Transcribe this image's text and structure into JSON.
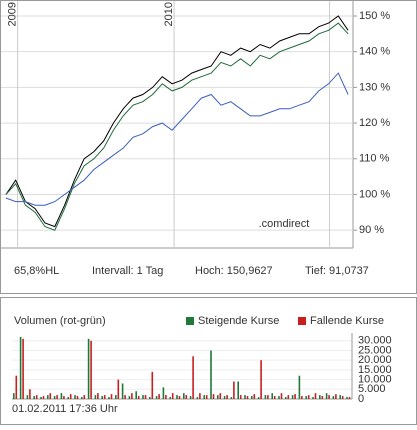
{
  "chart_data": [
    {
      "type": "line",
      "xlim": [
        0,
        36
      ],
      "xticks": [
        {
          "value": 1.7,
          "label": "2009"
        },
        {
          "value": 17.7,
          "label": "2010"
        },
        {
          "value": 33.6,
          "label": ""
        }
      ],
      "ylim": [
        85,
        154.2
      ],
      "yticks": [
        {
          "value": 90,
          "label": "90 %"
        },
        {
          "value": 100,
          "label": "100 %"
        },
        {
          "value": 110,
          "label": "110 %"
        },
        {
          "value": 120,
          "label": "120 %"
        },
        {
          "value": 130,
          "label": "130 %"
        },
        {
          "value": 140,
          "label": "140 %"
        },
        {
          "value": 150,
          "label": "150 %"
        }
      ],
      "grid": true,
      "watermark": ".comdirect",
      "info": [
        "65,8%HL",
        "Intervall: 1 Tag",
        "Hoch: 150,9627",
        "Tief: 91,0737"
      ],
      "series": [
        {
          "color": "#000000",
          "values": [
            100,
            104,
            98,
            96,
            92,
            91,
            97,
            104,
            110,
            112,
            115,
            120,
            124,
            127,
            128,
            130,
            133,
            131,
            132,
            134,
            135,
            136,
            140,
            139,
            141,
            140,
            142,
            141,
            143,
            144,
            145,
            145,
            147,
            148,
            150,
            146
          ]
        },
        {
          "color": "#1f6b3a",
          "values": [
            100,
            103,
            97,
            95,
            91,
            90,
            96,
            103,
            108,
            110,
            113,
            118,
            122,
            125,
            126,
            128,
            131,
            129,
            130,
            132,
            133,
            134,
            137,
            136,
            138,
            136,
            139,
            138,
            140,
            141,
            142,
            143,
            145,
            146,
            148,
            145
          ]
        },
        {
          "color": "#3a5fbf",
          "values": [
            99,
            98,
            98,
            97,
            97,
            98,
            100,
            102,
            104,
            107,
            109,
            111,
            113,
            116,
            117,
            119,
            120,
            118,
            121,
            124,
            127,
            128,
            125,
            126,
            124,
            122,
            122,
            123,
            124,
            124,
            125,
            126,
            129,
            131,
            134,
            128
          ]
        }
      ]
    },
    {
      "type": "bar",
      "title": "Volumen (rot-grün)",
      "footer": "01.02.2011 17:36 Uhr",
      "ylim": [
        0,
        34000
      ],
      "yticks": [
        0,
        {
          "value": 5000,
          "label": "5.000"
        },
        {
          "value": 10000,
          "label": "10.000"
        },
        {
          "value": 15000,
          "label": "15.000"
        },
        {
          "value": 20000,
          "label": "20.000"
        },
        {
          "value": 25000,
          "label": "25.000"
        },
        {
          "value": 30000,
          "label": "30.000"
        }
      ],
      "series": [
        {
          "name": "Steigende Kurse",
          "color": "#1f7a3a",
          "values": [
            3000,
            32000,
            2000,
            1500,
            1000,
            2000,
            1500,
            3000,
            1000,
            2000,
            1000,
            31000,
            2000,
            1500,
            1000,
            2000,
            8000,
            1500,
            4000,
            2000,
            1000,
            1500,
            6000,
            1000,
            2000,
            3000,
            1500,
            1000,
            2000,
            25000,
            2000,
            1500,
            1000,
            9000,
            2000,
            1500,
            1000,
            2000,
            3000,
            1500,
            1000,
            2000,
            12000,
            1500,
            1000,
            2000,
            3000,
            1500,
            2000,
            1000
          ]
        },
        {
          "name": "Fallende Kurse",
          "color": "#c81e1e",
          "values": [
            12000,
            31000,
            5000,
            2000,
            1500,
            3000,
            2000,
            1500,
            2500,
            1500,
            2000,
            30000,
            3000,
            2000,
            2500,
            10000,
            2000,
            3000,
            1500,
            2000,
            14000,
            2500,
            2000,
            3000,
            1500,
            2000,
            22000,
            3000,
            2000,
            2500,
            3000,
            2000,
            9000,
            2000,
            1500,
            2500,
            20000,
            2000,
            1500,
            3000,
            2000,
            2500,
            1500,
            2000,
            3000,
            1500,
            2000,
            2500,
            1500,
            1000
          ]
        }
      ]
    }
  ]
}
